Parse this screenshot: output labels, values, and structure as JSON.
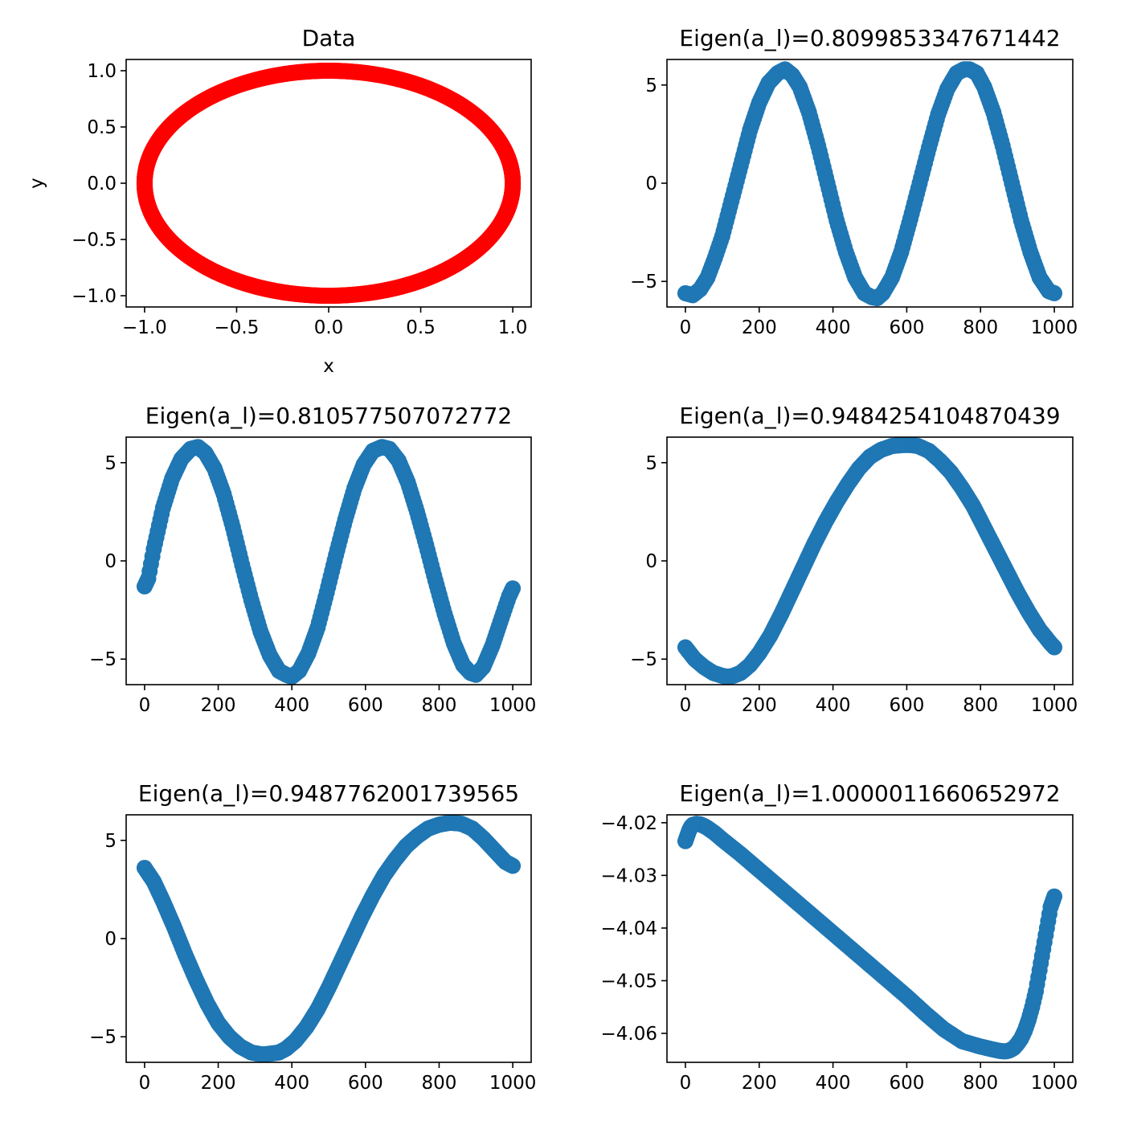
{
  "chart_data": [
    {
      "type": "scatter",
      "title": "Data",
      "xlabel": "x",
      "ylabel": "y",
      "color": "#ff0000",
      "xlim": [
        -1.1,
        1.1
      ],
      "ylim": [
        -1.1,
        1.1
      ],
      "xticks": [
        -1.0,
        -0.5,
        0.0,
        0.5,
        1.0
      ],
      "xtick_labels": [
        "−1.0",
        "−0.5",
        "0.0",
        "0.5",
        "1.0"
      ],
      "yticks": [
        1.0,
        0.5,
        0.0,
        -0.5,
        -1.0
      ],
      "ytick_labels": [
        "1.0",
        "0.5",
        "0.0",
        "−0.5",
        "−1.0"
      ],
      "curve": "circle",
      "radius": 1.0,
      "n_points": 1000
    },
    {
      "type": "scatter",
      "title": "Eigen(a_l)=0.8099853347671442",
      "xlabel": "",
      "ylabel": "",
      "color": "#1f77b4",
      "xlim": [
        -50,
        1050
      ],
      "ylim": [
        -6.3,
        6.3
      ],
      "xticks": [
        0,
        200,
        400,
        600,
        800,
        1000
      ],
      "xtick_labels": [
        "0",
        "200",
        "400",
        "600",
        "800",
        "1000"
      ],
      "yticks": [
        5,
        0,
        -5
      ],
      "ytick_labels": [
        "5",
        "0",
        "−5"
      ],
      "x": [
        0,
        20,
        40,
        60,
        80,
        100,
        125,
        150,
        175,
        200,
        225,
        250,
        270,
        290,
        310,
        335,
        360,
        385,
        410,
        435,
        460,
        485,
        505,
        520,
        535,
        560,
        585,
        610,
        635,
        660,
        685,
        710,
        735,
        755,
        770,
        790,
        810,
        835,
        860,
        885,
        910,
        935,
        960,
        985,
        1000
      ],
      "y": [
        -5.6,
        -5.7,
        -5.4,
        -4.8,
        -3.8,
        -2.7,
        -0.9,
        0.9,
        2.7,
        4.1,
        5.1,
        5.6,
        5.8,
        5.5,
        4.9,
        3.6,
        1.9,
        0.0,
        -1.9,
        -3.5,
        -4.8,
        -5.6,
        -5.8,
        -5.85,
        -5.6,
        -4.8,
        -3.5,
        -1.8,
        0.0,
        1.8,
        3.5,
        4.8,
        5.6,
        5.8,
        5.8,
        5.6,
        4.9,
        3.6,
        1.9,
        0.0,
        -1.9,
        -3.5,
        -4.8,
        -5.5,
        -5.6
      ]
    },
    {
      "type": "scatter",
      "title": "Eigen(a_l)=0.810577507072772",
      "xlabel": "",
      "ylabel": "",
      "color": "#1f77b4",
      "xlim": [
        -50,
        1050
      ],
      "ylim": [
        -6.3,
        6.3
      ],
      "xticks": [
        0,
        200,
        400,
        600,
        800,
        1000
      ],
      "xtick_labels": [
        "0",
        "200",
        "400",
        "600",
        "800",
        "1000"
      ],
      "yticks": [
        5,
        0,
        -5
      ],
      "ytick_labels": [
        "5",
        "0",
        "−5"
      ],
      "x": [
        0,
        10,
        25,
        50,
        75,
        100,
        125,
        145,
        165,
        190,
        215,
        240,
        265,
        290,
        315,
        340,
        365,
        385,
        400,
        420,
        445,
        470,
        495,
        520,
        545,
        570,
        595,
        620,
        645,
        665,
        690,
        715,
        740,
        765,
        790,
        815,
        840,
        865,
        885,
        900,
        920,
        945,
        970,
        990,
        1000
      ],
      "y": [
        -1.3,
        -0.9,
        0.6,
        2.7,
        4.2,
        5.2,
        5.7,
        5.8,
        5.5,
        4.7,
        3.4,
        1.7,
        -0.2,
        -2.0,
        -3.6,
        -4.8,
        -5.6,
        -5.8,
        -5.9,
        -5.6,
        -4.7,
        -3.4,
        -1.6,
        0.3,
        2.1,
        3.7,
        4.9,
        5.6,
        5.8,
        5.7,
        5.1,
        4.0,
        2.5,
        0.8,
        -1.0,
        -2.7,
        -4.2,
        -5.3,
        -5.7,
        -5.8,
        -5.4,
        -4.3,
        -2.9,
        -1.8,
        -1.4
      ]
    },
    {
      "type": "scatter",
      "title": "Eigen(a_l)=0.9484254104870439",
      "xlabel": "",
      "ylabel": "",
      "color": "#1f77b4",
      "xlim": [
        -50,
        1050
      ],
      "ylim": [
        -6.3,
        6.3
      ],
      "xticks": [
        0,
        200,
        400,
        600,
        800,
        1000
      ],
      "xtick_labels": [
        "0",
        "200",
        "400",
        "600",
        "800",
        "1000"
      ],
      "yticks": [
        5,
        0,
        -5
      ],
      "ytick_labels": [
        "5",
        "0",
        "−5"
      ],
      "x": [
        0,
        25,
        50,
        75,
        100,
        115,
        130,
        150,
        175,
        200,
        230,
        260,
        290,
        320,
        350,
        380,
        410,
        440,
        470,
        500,
        530,
        560,
        590,
        610,
        630,
        660,
        690,
        720,
        750,
        780,
        810,
        840,
        870,
        900,
        930,
        960,
        990,
        1000
      ],
      "y": [
        -4.4,
        -5.0,
        -5.4,
        -5.7,
        -5.85,
        -5.9,
        -5.85,
        -5.7,
        -5.3,
        -4.7,
        -3.8,
        -2.7,
        -1.5,
        -0.3,
        0.9,
        2.0,
        3.0,
        3.9,
        4.7,
        5.3,
        5.65,
        5.85,
        5.9,
        5.9,
        5.85,
        5.6,
        5.1,
        4.5,
        3.7,
        2.8,
        1.7,
        0.6,
        -0.5,
        -1.6,
        -2.6,
        -3.5,
        -4.2,
        -4.4
      ]
    },
    {
      "type": "scatter",
      "title": "Eigen(a_l)=0.9487762001739565",
      "xlabel": "",
      "ylabel": "",
      "color": "#1f77b4",
      "xlim": [
        -50,
        1050
      ],
      "ylim": [
        -6.3,
        6.3
      ],
      "xticks": [
        0,
        200,
        400,
        600,
        800,
        1000
      ],
      "xtick_labels": [
        "0",
        "200",
        "400",
        "600",
        "800",
        "1000"
      ],
      "yticks": [
        5,
        0,
        -5
      ],
      "ytick_labels": [
        "5",
        "0",
        "−5"
      ],
      "x": [
        0,
        25,
        50,
        80,
        110,
        140,
        170,
        200,
        230,
        260,
        290,
        320,
        345,
        365,
        385,
        410,
        440,
        470,
        500,
        530,
        560,
        590,
        620,
        650,
        680,
        710,
        740,
        770,
        800,
        830,
        860,
        890,
        920,
        950,
        980,
        1000
      ],
      "y": [
        3.6,
        2.9,
        1.9,
        0.6,
        -0.8,
        -2.1,
        -3.3,
        -4.3,
        -5.0,
        -5.5,
        -5.8,
        -5.9,
        -5.85,
        -5.8,
        -5.6,
        -5.2,
        -4.5,
        -3.6,
        -2.5,
        -1.3,
        -0.1,
        1.1,
        2.2,
        3.2,
        4.0,
        4.7,
        5.2,
        5.6,
        5.8,
        5.9,
        5.85,
        5.6,
        5.1,
        4.5,
        3.9,
        3.7
      ]
    },
    {
      "type": "scatter",
      "title": "Eigen(a_l)=1.0000011660652972",
      "xlabel": "",
      "ylabel": "",
      "color": "#1f77b4",
      "xlim": [
        -50,
        1050
      ],
      "ylim": [
        -4.0655,
        -4.0185
      ],
      "xticks": [
        0,
        200,
        400,
        600,
        800,
        1000
      ],
      "xtick_labels": [
        "0",
        "200",
        "400",
        "600",
        "800",
        "1000"
      ],
      "yticks": [
        -4.02,
        -4.03,
        -4.04,
        -4.05,
        -4.06
      ],
      "ytick_labels": [
        "−4.02",
        "−4.03",
        "−4.04",
        "−4.05",
        "−4.06"
      ],
      "x": [
        0,
        5,
        10,
        15,
        20,
        30,
        40,
        50,
        60,
        80,
        100,
        150,
        200,
        250,
        300,
        350,
        400,
        450,
        500,
        550,
        600,
        650,
        700,
        750,
        800,
        830,
        850,
        860,
        870,
        880,
        890,
        900,
        910,
        920,
        930,
        940,
        950,
        960,
        970,
        980,
        990,
        1000
      ],
      "y": [
        -4.0235,
        -4.0225,
        -4.0215,
        -4.0208,
        -4.0204,
        -4.0202,
        -4.0203,
        -4.0206,
        -4.021,
        -4.022,
        -4.0232,
        -4.026,
        -4.029,
        -4.032,
        -4.035,
        -4.038,
        -4.041,
        -4.044,
        -4.047,
        -4.05,
        -4.053,
        -4.0562,
        -4.0592,
        -4.0615,
        -4.0625,
        -4.063,
        -4.0633,
        -4.0634,
        -4.0634,
        -4.0632,
        -4.0628,
        -4.062,
        -4.061,
        -4.0595,
        -4.0575,
        -4.055,
        -4.052,
        -4.048,
        -4.044,
        -4.04,
        -4.036,
        -4.034
      ]
    }
  ]
}
